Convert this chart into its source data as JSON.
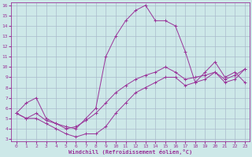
{
  "xlabel": "Windchill (Refroidissement éolien,°C)",
  "xlim": [
    -0.5,
    23.5
  ],
  "ylim": [
    2.8,
    16.3
  ],
  "xticks": [
    0,
    1,
    2,
    3,
    4,
    5,
    6,
    7,
    8,
    9,
    10,
    11,
    12,
    13,
    14,
    15,
    16,
    17,
    18,
    19,
    20,
    21,
    22,
    23
  ],
  "yticks": [
    3,
    4,
    5,
    6,
    7,
    8,
    9,
    10,
    11,
    12,
    13,
    14,
    15,
    16
  ],
  "bg_color": "#cde8e8",
  "line_color": "#993399",
  "grid_color": "#aabbcc",
  "line1_x": [
    0,
    1,
    2,
    3,
    4,
    5,
    6,
    7,
    8,
    9,
    10,
    11,
    12,
    13,
    14,
    15,
    16,
    17,
    18,
    19,
    20,
    21,
    22,
    23
  ],
  "line1_y": [
    5.5,
    6.5,
    7.0,
    5.0,
    4.5,
    4.2,
    4.0,
    5.0,
    6.0,
    11.0,
    13.0,
    14.5,
    15.5,
    16.0,
    14.5,
    14.5,
    14.0,
    11.5,
    8.5,
    9.5,
    10.5,
    9.0,
    9.5,
    8.5
  ],
  "line2_x": [
    0,
    1,
    2,
    3,
    4,
    5,
    6,
    7,
    8,
    9,
    10,
    11,
    12,
    13,
    14,
    15,
    16,
    17,
    18,
    19,
    20,
    21,
    22,
    23
  ],
  "line2_y": [
    5.5,
    5.0,
    5.5,
    4.8,
    4.5,
    4.0,
    4.2,
    4.8,
    5.5,
    6.5,
    7.5,
    8.2,
    8.8,
    9.2,
    9.5,
    10.0,
    9.5,
    8.8,
    9.0,
    9.2,
    9.5,
    8.8,
    9.2,
    9.8
  ],
  "line3_x": [
    0,
    1,
    2,
    3,
    4,
    5,
    6,
    7,
    8,
    9,
    10,
    11,
    12,
    13,
    14,
    15,
    16,
    17,
    18,
    19,
    20,
    21,
    22,
    23
  ],
  "line3_y": [
    5.5,
    5.0,
    5.0,
    4.5,
    4.0,
    3.5,
    3.2,
    3.5,
    3.5,
    4.2,
    5.5,
    6.5,
    7.5,
    8.0,
    8.5,
    9.0,
    9.0,
    8.2,
    8.5,
    8.8,
    9.5,
    8.5,
    8.8,
    9.8
  ]
}
